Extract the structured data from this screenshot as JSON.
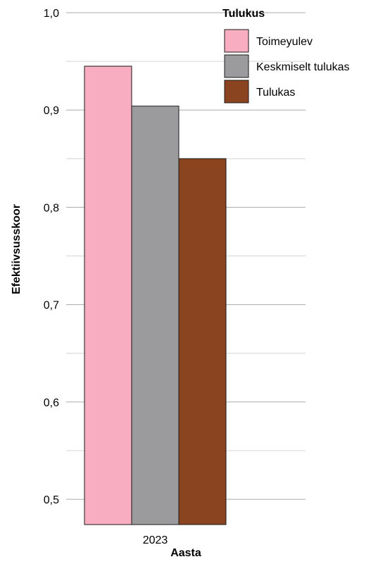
{
  "chart_data": {
    "type": "bar",
    "title": "",
    "xlabel": "Aasta",
    "ylabel": "Efektiivsusskoor",
    "categories": [
      "2023"
    ],
    "series": [
      {
        "name": "Toimeyulev",
        "values": [
          0.945
        ],
        "color": "#F8ADC0"
      },
      {
        "name": "Keskmiselt tulukas",
        "values": [
          0.904
        ],
        "color": "#9B9B9D"
      },
      {
        "name": "Tulukas",
        "values": [
          0.85
        ],
        "color": "#8B4420"
      }
    ],
    "ylim": [
      0.474,
      1.0
    ],
    "yticks": [
      {
        "value": 0.5,
        "label": "0,5"
      },
      {
        "value": 0.6,
        "label": "0,6"
      },
      {
        "value": 0.7,
        "label": "0,7"
      },
      {
        "value": 0.8,
        "label": "0,8"
      },
      {
        "value": 0.9,
        "label": "0,9"
      },
      {
        "value": 1.0,
        "label": "1,0"
      }
    ],
    "minor_grid": [
      0.55,
      0.65,
      0.75,
      0.85,
      0.95
    ],
    "grid": true,
    "legend": {
      "title": "Tulukus",
      "position": "top-right"
    }
  }
}
